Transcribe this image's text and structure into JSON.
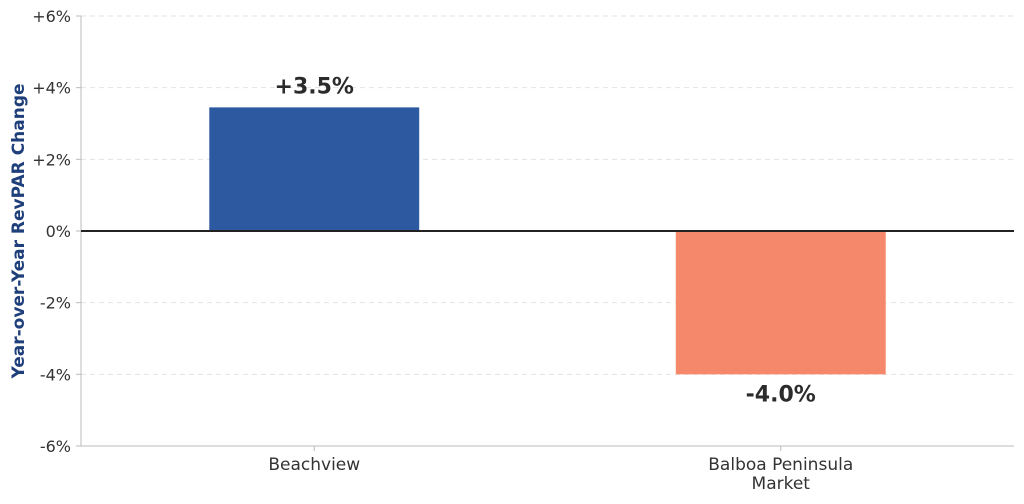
{
  "chart_data": {
    "type": "bar",
    "categories": [
      "Beachview",
      "Balboa Peninsula Market"
    ],
    "category_lines": [
      [
        "Beachview"
      ],
      [
        "Balboa Peninsula",
        "Market"
      ]
    ],
    "values": [
      3.45,
      -4.0
    ],
    "data_labels": [
      "+3.5%",
      "-4.0%"
    ],
    "colors": [
      "#2c59a0",
      "#f5876a"
    ],
    "title": "",
    "xlabel": "",
    "ylabel": "Year-over-Year RevPAR Change",
    "ylim": [
      -6,
      6
    ],
    "yticks": [
      6,
      4,
      2,
      0,
      -2,
      -4,
      -6
    ],
    "ytick_labels": [
      "+6%",
      "+4%",
      "+2%",
      "0%",
      "-2%",
      "-4%",
      "-6%"
    ],
    "grid": "horizontal dashed",
    "zero_line": true,
    "ylabel_color": "#1f3f7a"
  }
}
